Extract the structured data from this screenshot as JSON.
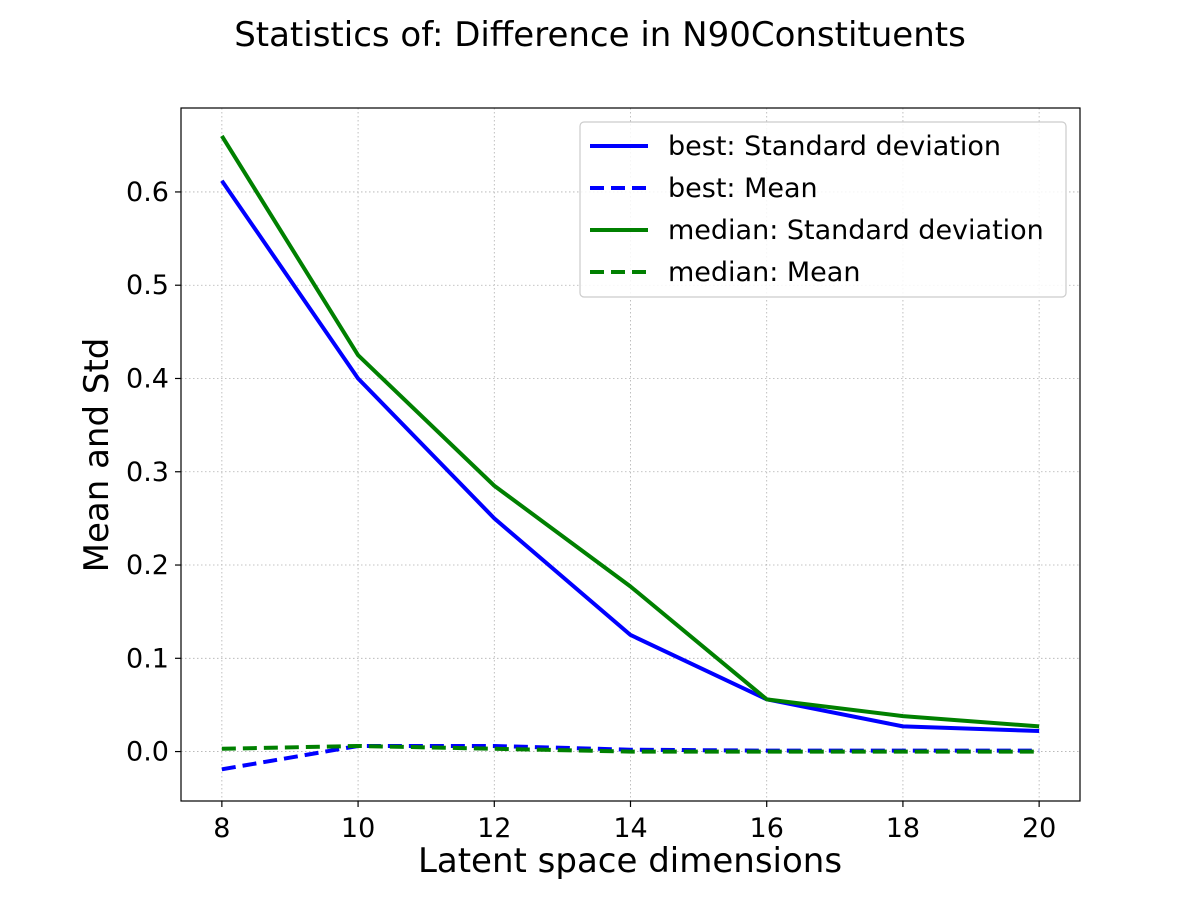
{
  "chart_data": {
    "type": "line",
    "title": "Statistics of: Difference in N90Constituents",
    "xlabel": "Latent space dimensions",
    "ylabel": "Mean and Std",
    "x": [
      8,
      10,
      12,
      14,
      16,
      18,
      20
    ],
    "xlim": [
      7.4,
      20.6
    ],
    "ylim": [
      -0.053,
      0.69
    ],
    "xticks": [
      "8",
      "10",
      "12",
      "14",
      "16",
      "18",
      "20"
    ],
    "yticks": [
      "0.0",
      "0.1",
      "0.2",
      "0.3",
      "0.4",
      "0.5",
      "0.6"
    ],
    "grid": true,
    "legend_position": "top-right",
    "series": [
      {
        "name": "best: Standard deviation",
        "color": "#0000ff",
        "style": "solid",
        "values": [
          0.612,
          0.4,
          0.25,
          0.125,
          0.056,
          0.027,
          0.022
        ]
      },
      {
        "name": "best: Mean",
        "color": "#0000ff",
        "style": "dashed",
        "values": [
          -0.019,
          0.006,
          0.006,
          0.002,
          0.001,
          0.001,
          0.001
        ]
      },
      {
        "name": "median: Standard deviation",
        "color": "#008000",
        "style": "solid",
        "values": [
          0.66,
          0.425,
          0.285,
          0.177,
          0.056,
          0.038,
          0.027
        ]
      },
      {
        "name": "median: Mean",
        "color": "#008000",
        "style": "dashed",
        "values": [
          0.003,
          0.006,
          0.003,
          0.0,
          0.0,
          0.0,
          0.0
        ]
      }
    ]
  }
}
